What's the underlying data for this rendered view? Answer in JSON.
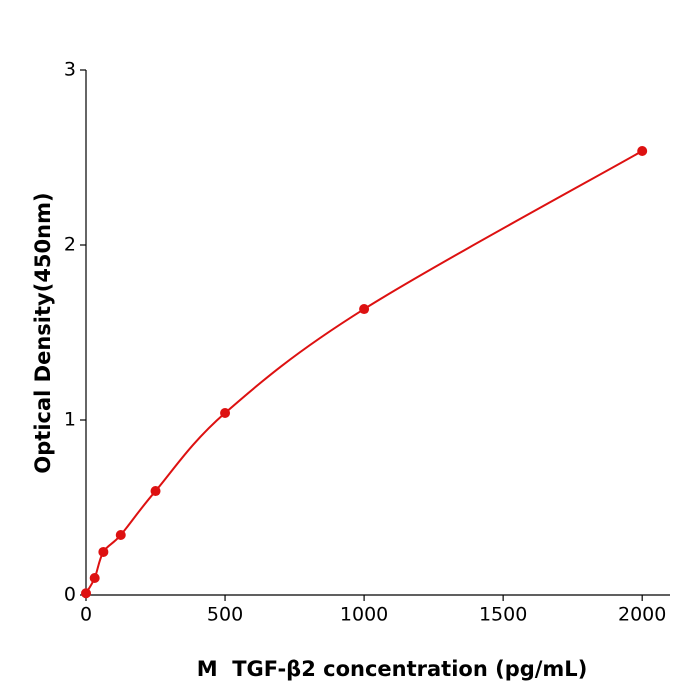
{
  "chart_data": {
    "type": "line",
    "xlabel": "M  TGF-β2 concentration (pg/mL)",
    "ylabel": "Optical Density(450nm)",
    "x": [
      0,
      31.25,
      62.5,
      125,
      250,
      500,
      1000,
      2000
    ],
    "values": [
      0.01,
      0.097,
      0.246,
      0.343,
      0.594,
      1.04,
      1.634,
      2.537
    ],
    "color": "#dd1111",
    "markers": true,
    "smooth": true,
    "xlim": [
      0,
      2100
    ],
    "xticks": [
      0,
      500,
      1000,
      1500,
      2000
    ],
    "ylim": [
      0,
      3
    ],
    "yticks": [
      0,
      1,
      2,
      3
    ],
    "grid": false
  }
}
